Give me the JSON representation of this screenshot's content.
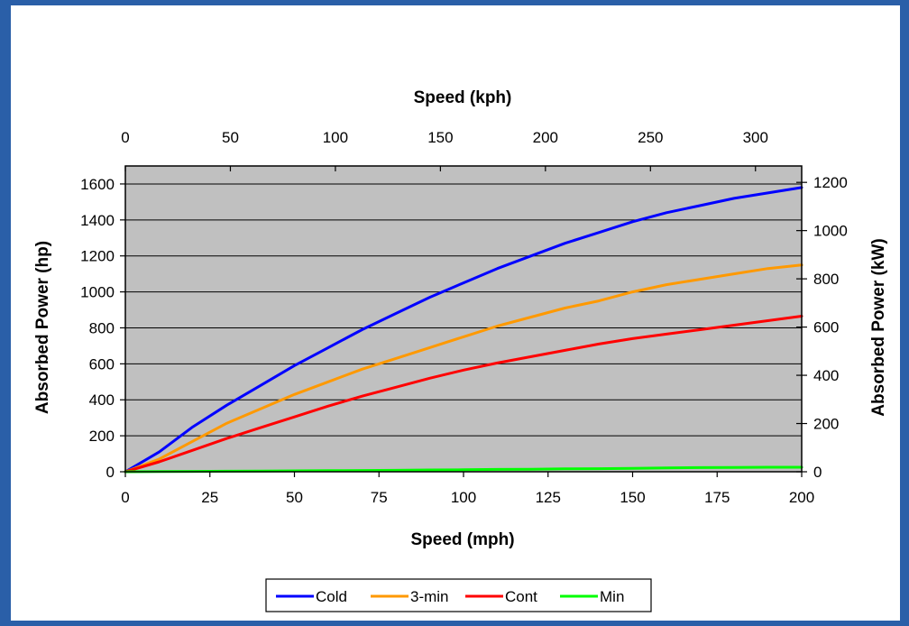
{
  "chart_data": {
    "type": "line",
    "title": "",
    "xlabel": "Speed (mph)",
    "xlabel_top": "Speed (kph)",
    "ylabel": "Absorbed Power (hp)",
    "ylabel_right": "Absorbed Power (kW)",
    "xlim": [
      0,
      200
    ],
    "ylim": [
      0,
      1700
    ],
    "xlim_top": [
      0,
      322
    ],
    "ylim_right": [
      0,
      1268
    ],
    "x_ticks": [
      0,
      25,
      50,
      75,
      100,
      125,
      150,
      175,
      200
    ],
    "x_tick_labels": [
      "0",
      "25",
      "50",
      "75",
      "100",
      "125",
      "150",
      "175",
      "200"
    ],
    "y_ticks": [
      0,
      200,
      400,
      600,
      800,
      1000,
      1200,
      1400,
      1600
    ],
    "y_tick_labels": [
      "0",
      "200",
      "400",
      "600",
      "800",
      "1000",
      "1200",
      "1400",
      "1600"
    ],
    "x_top_ticks": [
      0,
      50,
      100,
      150,
      200,
      250,
      300
    ],
    "x_top_tick_labels": [
      "0",
      "50",
      "100",
      "150",
      "200",
      "250",
      "300"
    ],
    "y_right_ticks": [
      0,
      200,
      400,
      600,
      800,
      1000,
      1200
    ],
    "y_right_tick_labels": [
      "0",
      "200",
      "400",
      "600",
      "800",
      "1000",
      "1200"
    ],
    "grid": true,
    "plot_background": "#c0c0c0",
    "legend_position": "bottom",
    "x": [
      0,
      10,
      20,
      30,
      40,
      50,
      60,
      70,
      80,
      90,
      100,
      110,
      120,
      130,
      140,
      150,
      160,
      170,
      180,
      190,
      200
    ],
    "series": [
      {
        "name": "Cold",
        "color": "#0000ff",
        "values": [
          0,
          110,
          250,
          370,
          480,
          590,
          690,
          790,
          880,
          970,
          1050,
          1130,
          1200,
          1270,
          1330,
          1390,
          1440,
          1480,
          1520,
          1550,
          1580
        ]
      },
      {
        "name": "3-min",
        "color": "#ff9900",
        "values": [
          0,
          70,
          170,
          270,
          350,
          430,
          500,
          570,
          630,
          690,
          750,
          810,
          860,
          910,
          950,
          1000,
          1040,
          1070,
          1100,
          1130,
          1150
        ]
      },
      {
        "name": "Cont",
        "color": "#ff0000",
        "values": [
          0,
          55,
          120,
          185,
          245,
          305,
          365,
          420,
          470,
          520,
          565,
          605,
          640,
          675,
          710,
          740,
          765,
          790,
          815,
          840,
          865
        ]
      },
      {
        "name": "Min",
        "color": "#00ff00",
        "values": [
          0,
          1,
          2,
          3,
          4,
          5,
          6,
          7,
          8,
          10,
          11,
          13,
          14,
          16,
          17,
          19,
          21,
          23,
          24,
          25,
          25
        ]
      }
    ]
  }
}
